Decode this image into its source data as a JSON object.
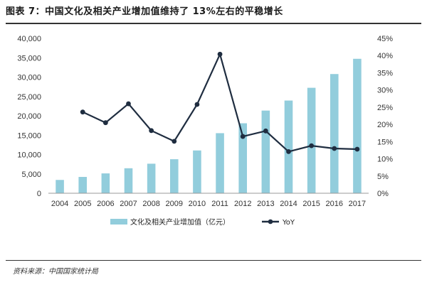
{
  "title": "图表 7：中国文化及相关产业增加值维持了 13%左右的平稳增长",
  "source": "资料来源：中国国家统计局",
  "colors": {
    "bar": "#92CDDC",
    "line": "#1F2D40",
    "axis": "#999999"
  },
  "chart_data": {
    "type": "bar+line",
    "categories": [
      "2004",
      "2005",
      "2006",
      "2007",
      "2008",
      "2009",
      "2010",
      "2011",
      "2012",
      "2013",
      "2014",
      "2015",
      "2016",
      "2017"
    ],
    "series": [
      {
        "name": "文化及相关产业增加值（亿元）",
        "type": "bar",
        "axis": "left",
        "values": [
          3440,
          4216,
          5123,
          6455,
          7630,
          8786,
          11052,
          15516,
          18071,
          21351,
          23940,
          27235,
          30785,
          34722
        ]
      },
      {
        "name": "YoY",
        "type": "line",
        "axis": "right",
        "values": [
          null,
          0.236,
          0.205,
          0.26,
          0.182,
          0.151,
          0.258,
          0.404,
          0.165,
          0.181,
          0.121,
          0.138,
          0.13,
          0.128
        ]
      }
    ],
    "ylim_left": [
      0,
      40000
    ],
    "left_ticks": [
      "0",
      "5,000",
      "10,000",
      "15,000",
      "20,000",
      "25,000",
      "30,000",
      "35,000",
      "40,000"
    ],
    "ylim_right": [
      0,
      0.45
    ],
    "right_ticks": [
      "0%",
      "5%",
      "10%",
      "15%",
      "20%",
      "25%",
      "30%",
      "35%",
      "40%",
      "45%"
    ],
    "grid": false,
    "legend_position": "bottom"
  }
}
